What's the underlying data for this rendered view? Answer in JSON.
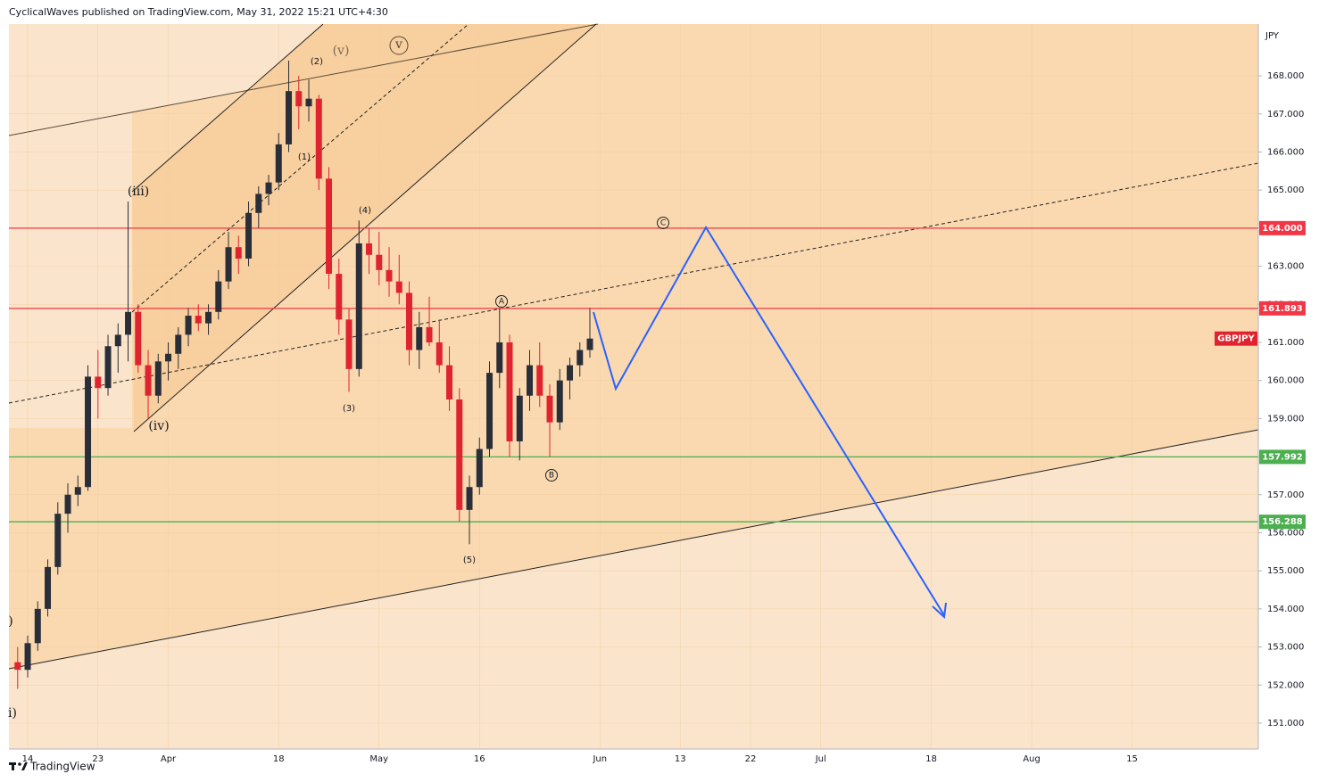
{
  "header": "CyclicalWaves published on TradingView.com, May 31, 2022 15:21 UTC+4:30",
  "footer": "TradingView",
  "chart_data": {
    "type": "candlestick",
    "currency": "JPY",
    "symbol": "GBPJPY",
    "x": [
      -1,
      0,
      1,
      2,
      3,
      4,
      5,
      6,
      7,
      8,
      9,
      10,
      11,
      12,
      13,
      14,
      15,
      16,
      17,
      18,
      19,
      20,
      21,
      22,
      23,
      24,
      25,
      26,
      27,
      28,
      29,
      30,
      31,
      32,
      33,
      34,
      35,
      36,
      37,
      38,
      39,
      40,
      41,
      42,
      43,
      44,
      45,
      46,
      47,
      48,
      49,
      50,
      51,
      52,
      53,
      54,
      55,
      56
    ],
    "open": [
      152.6,
      152.4,
      153.1,
      154.0,
      155.1,
      156.5,
      157.0,
      157.2,
      160.1,
      159.8,
      160.9,
      161.2,
      161.8,
      160.4,
      159.6,
      160.5,
      160.7,
      161.2,
      161.7,
      161.5,
      161.8,
      162.6,
      163.5,
      163.2,
      164.4,
      164.9,
      165.2,
      166.2,
      167.6,
      167.2,
      167.4,
      165.3,
      162.8,
      161.6,
      160.3,
      163.6,
      163.3,
      162.9,
      162.6,
      162.3,
      160.8,
      161.4,
      161.0,
      160.4,
      159.5,
      156.6,
      157.2,
      158.2,
      160.2,
      161.0,
      158.4,
      159.6,
      160.4,
      159.6,
      158.9,
      160.0,
      160.4,
      160.8
    ],
    "high": [
      153.0,
      153.3,
      154.2,
      155.3,
      156.8,
      157.3,
      157.5,
      160.4,
      160.8,
      161.2,
      161.5,
      164.7,
      162.0,
      160.8,
      160.7,
      161.0,
      161.4,
      161.9,
      162.0,
      162.0,
      162.9,
      163.9,
      163.8,
      164.7,
      165.1,
      165.4,
      166.5,
      168.4,
      168.0,
      167.9,
      167.5,
      165.6,
      163.2,
      161.9,
      164.2,
      164.0,
      163.9,
      163.5,
      163.3,
      162.6,
      161.8,
      162.2,
      161.6,
      160.9,
      159.8,
      157.5,
      158.5,
      160.5,
      161.9,
      161.2,
      159.8,
      160.8,
      161.0,
      159.9,
      160.3,
      160.6,
      161.0,
      161.9
    ],
    "low": [
      151.9,
      152.2,
      152.9,
      153.8,
      154.9,
      156.0,
      156.7,
      157.1,
      159.0,
      159.6,
      160.2,
      160.5,
      160.2,
      159.0,
      159.4,
      160.0,
      160.3,
      160.9,
      161.3,
      161.2,
      161.6,
      162.4,
      162.8,
      163.0,
      164.0,
      164.6,
      165.0,
      166.0,
      166.6,
      166.8,
      165.0,
      162.4,
      161.2,
      159.7,
      160.1,
      162.8,
      162.5,
      162.2,
      162.0,
      160.4,
      160.3,
      160.9,
      160.2,
      159.2,
      156.3,
      155.7,
      157.0,
      158.0,
      159.8,
      158.0,
      157.9,
      159.2,
      159.3,
      158.0,
      158.7,
      159.5,
      160.1,
      160.6
    ],
    "close": [
      152.4,
      153.1,
      154.0,
      155.1,
      156.5,
      157.0,
      157.2,
      160.1,
      159.8,
      160.9,
      161.2,
      161.8,
      160.4,
      159.6,
      160.5,
      160.7,
      161.2,
      161.7,
      161.5,
      161.8,
      162.6,
      163.5,
      163.2,
      164.4,
      164.9,
      165.2,
      166.2,
      167.6,
      167.2,
      167.4,
      165.3,
      162.8,
      161.6,
      160.3,
      163.6,
      163.3,
      162.9,
      162.6,
      162.3,
      160.8,
      161.4,
      161.0,
      160.4,
      159.5,
      156.6,
      157.2,
      158.2,
      160.2,
      161.0,
      158.4,
      159.6,
      160.4,
      159.6,
      158.9,
      160.0,
      160.4,
      160.8,
      161.1
    ],
    "up_color": "#2a2e39",
    "down_color": "#e0242f",
    "xlim": [
      -1.87,
      122.58
    ],
    "xticks": [
      {
        "value": 0,
        "label": "14"
      },
      {
        "value": 7,
        "label": "23"
      },
      {
        "value": 14,
        "label": "Apr"
      },
      {
        "value": 25,
        "label": "18"
      },
      {
        "value": 35,
        "label": "May"
      },
      {
        "value": 45,
        "label": "16"
      },
      {
        "value": 57,
        "label": "Jun"
      },
      {
        "value": 65,
        "label": "13"
      },
      {
        "value": 72,
        "label": "22"
      },
      {
        "value": 79,
        "label": "Jul"
      },
      {
        "value": 90,
        "label": "18"
      },
      {
        "value": 100,
        "label": "Aug"
      },
      {
        "value": 110,
        "label": "15"
      }
    ],
    "ylim": [
      150.32,
      169.36
    ],
    "yticks": [
      {
        "value": 151,
        "label": "151.000"
      },
      {
        "value": 152,
        "label": "152.000"
      },
      {
        "value": 153,
        "label": "153.000"
      },
      {
        "value": 154,
        "label": "154.000"
      },
      {
        "value": 155,
        "label": "155.000"
      },
      {
        "value": 156,
        "label": "156.000"
      },
      {
        "value": 157,
        "label": "157.000"
      },
      {
        "value": 158,
        "label": "158.000"
      },
      {
        "value": 159,
        "label": "159.000"
      },
      {
        "value": 160,
        "label": "160.000"
      },
      {
        "value": 161,
        "label": "161.000"
      },
      {
        "value": 162,
        "label": "162.000"
      },
      {
        "value": 163,
        "label": "163.000"
      },
      {
        "value": 164,
        "label": "164.000"
      },
      {
        "value": 165,
        "label": "165.000"
      },
      {
        "value": 166,
        "label": "166.000"
      },
      {
        "value": 167,
        "label": "167.000"
      },
      {
        "value": 168,
        "label": "168.000"
      }
    ],
    "levels": [
      {
        "value": 164.0,
        "label": "164.000",
        "color": "#f23645"
      },
      {
        "value": 161.893,
        "label": "161.893",
        "color": "#f23645"
      },
      {
        "value": 157.992,
        "label": "157.992",
        "color": "#4caf50"
      },
      {
        "value": 156.288,
        "label": "156.288",
        "color": "#4caf50"
      }
    ],
    "annotations": [
      "(iii)",
      "(iv)",
      "(v)",
      "v",
      "(1)",
      "(2)",
      "(3)",
      "(4)",
      "(5)",
      "A",
      "B",
      "C",
      "i)",
      ")"
    ]
  }
}
